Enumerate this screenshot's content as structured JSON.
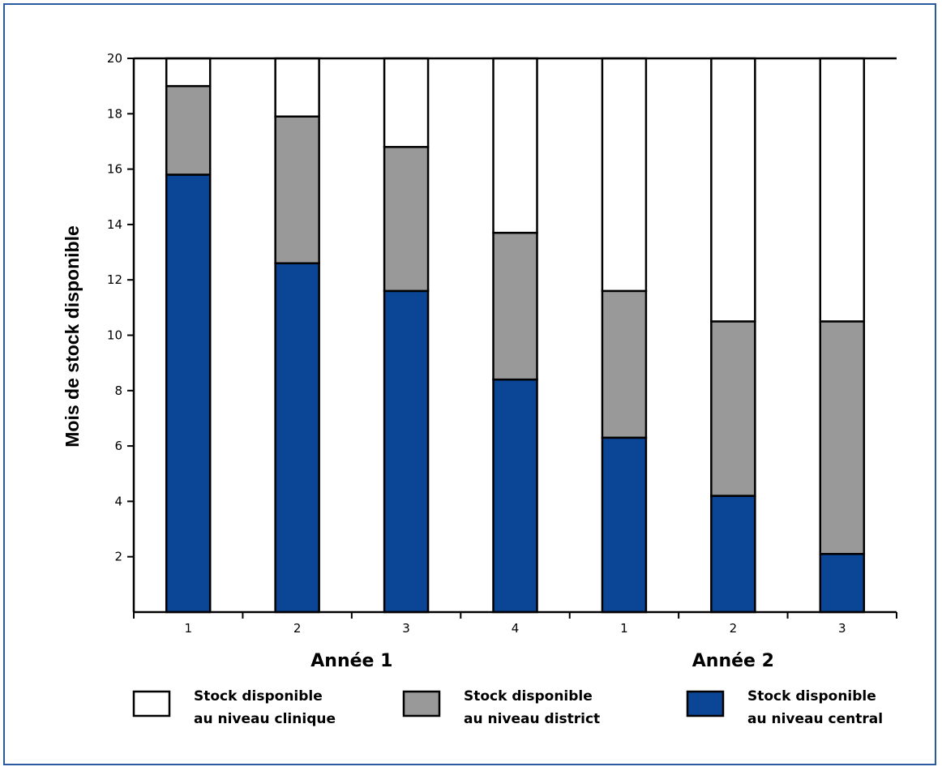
{
  "chart_data": {
    "type": "bar",
    "stacked": true,
    "categories": [
      "1",
      "2",
      "3",
      "4",
      "1",
      "2",
      "3"
    ],
    "groups": [
      {
        "label": "Année 1",
        "start": 0,
        "end": 3
      },
      {
        "label": "Année 2",
        "start": 4,
        "end": 6
      }
    ],
    "series": [
      {
        "name": "Stock disponible au niveau central",
        "legend_lines": [
          "Stock disponible",
          "au niveau central"
        ],
        "color": "#0a4596",
        "values": [
          15.8,
          12.6,
          11.6,
          8.4,
          6.3,
          4.2,
          2.1
        ]
      },
      {
        "name": "Stock disponible au niveau district",
        "legend_lines": [
          "Stock disponible",
          "au niveau district"
        ],
        "color": "#999999",
        "values": [
          3.2,
          5.3,
          5.2,
          5.3,
          5.3,
          6.3,
          8.4
        ]
      },
      {
        "name": "Stock disponible au niveau clinique",
        "legend_lines": [
          "Stock disponible",
          "au niveau clinique"
        ],
        "color": "#ffffff",
        "values": [
          1.0,
          2.1,
          3.2,
          6.3,
          8.4,
          9.5,
          9.5
        ]
      }
    ],
    "legend_order": [
      2,
      1,
      0
    ],
    "ylabel": "Mois de stock disponible",
    "xlabel": "",
    "ylim": [
      0,
      20
    ],
    "yticks": [
      2,
      4,
      6,
      8,
      10,
      12,
      14,
      16,
      18,
      20
    ],
    "grid": false,
    "legend_position": "bottom"
  }
}
